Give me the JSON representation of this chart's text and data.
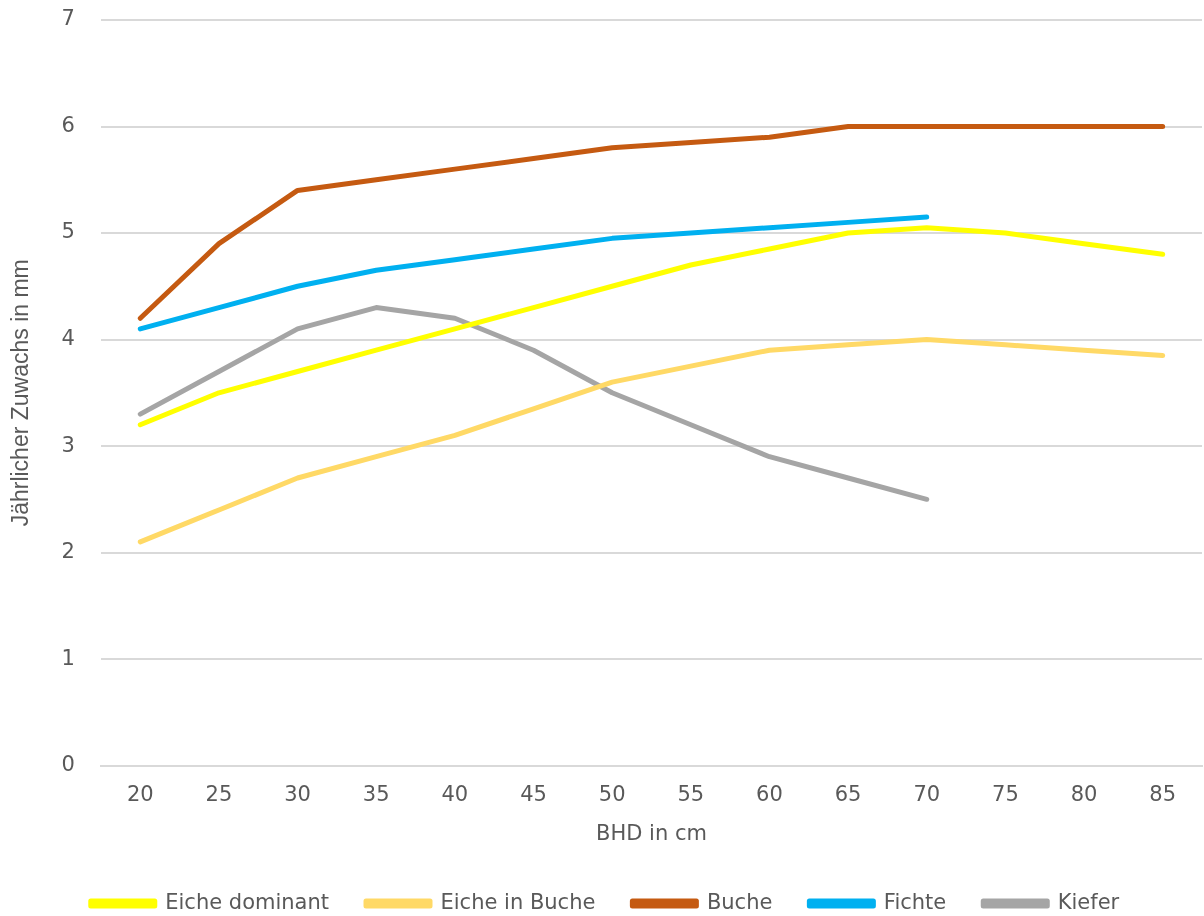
{
  "chart_data": {
    "type": "line",
    "xlabel": "BHD in cm",
    "ylabel": "Jährlicher Zuwachs in mm",
    "categories": [
      "20",
      "25",
      "30",
      "35",
      "40",
      "45",
      "50",
      "55",
      "60",
      "65",
      "70",
      "75",
      "80",
      "85"
    ],
    "ylim": [
      0,
      7
    ],
    "yticks": [
      0,
      1,
      2,
      3,
      4,
      5,
      6,
      7
    ],
    "grid": "y",
    "legend": "bottom",
    "marker": "none",
    "line_style": "solid",
    "series": [
      {
        "name": "Eiche dominant",
        "color": "#ffff00",
        "values": [
          3.2,
          3.5,
          3.7,
          3.9,
          4.1,
          4.3,
          4.5,
          4.7,
          4.85,
          5.0,
          5.05,
          5.0,
          4.9,
          4.8
        ]
      },
      {
        "name": "Eiche in Buche",
        "color": "#ffd966",
        "values": [
          2.1,
          2.4,
          2.7,
          2.9,
          3.1,
          3.35,
          3.6,
          3.75,
          3.9,
          3.95,
          4.0,
          3.95,
          3.9,
          3.85
        ]
      },
      {
        "name": "Buche",
        "color": "#c55a11",
        "values": [
          4.2,
          4.9,
          5.4,
          5.5,
          5.6,
          5.7,
          5.8,
          5.85,
          5.9,
          6.0,
          6.0,
          6.0,
          6.0,
          6.0
        ]
      },
      {
        "name": "Fichte",
        "color": "#00b0f0",
        "values": [
          4.1,
          4.3,
          4.5,
          4.65,
          4.75,
          4.85,
          4.95,
          5.0,
          5.05,
          5.1,
          5.15,
          null,
          null,
          null
        ]
      },
      {
        "name": "Kiefer",
        "color": "#a5a5a5",
        "values": [
          3.3,
          3.7,
          4.1,
          4.3,
          4.2,
          3.9,
          3.5,
          3.2,
          2.9,
          2.7,
          2.5,
          null,
          null,
          null
        ]
      }
    ]
  }
}
